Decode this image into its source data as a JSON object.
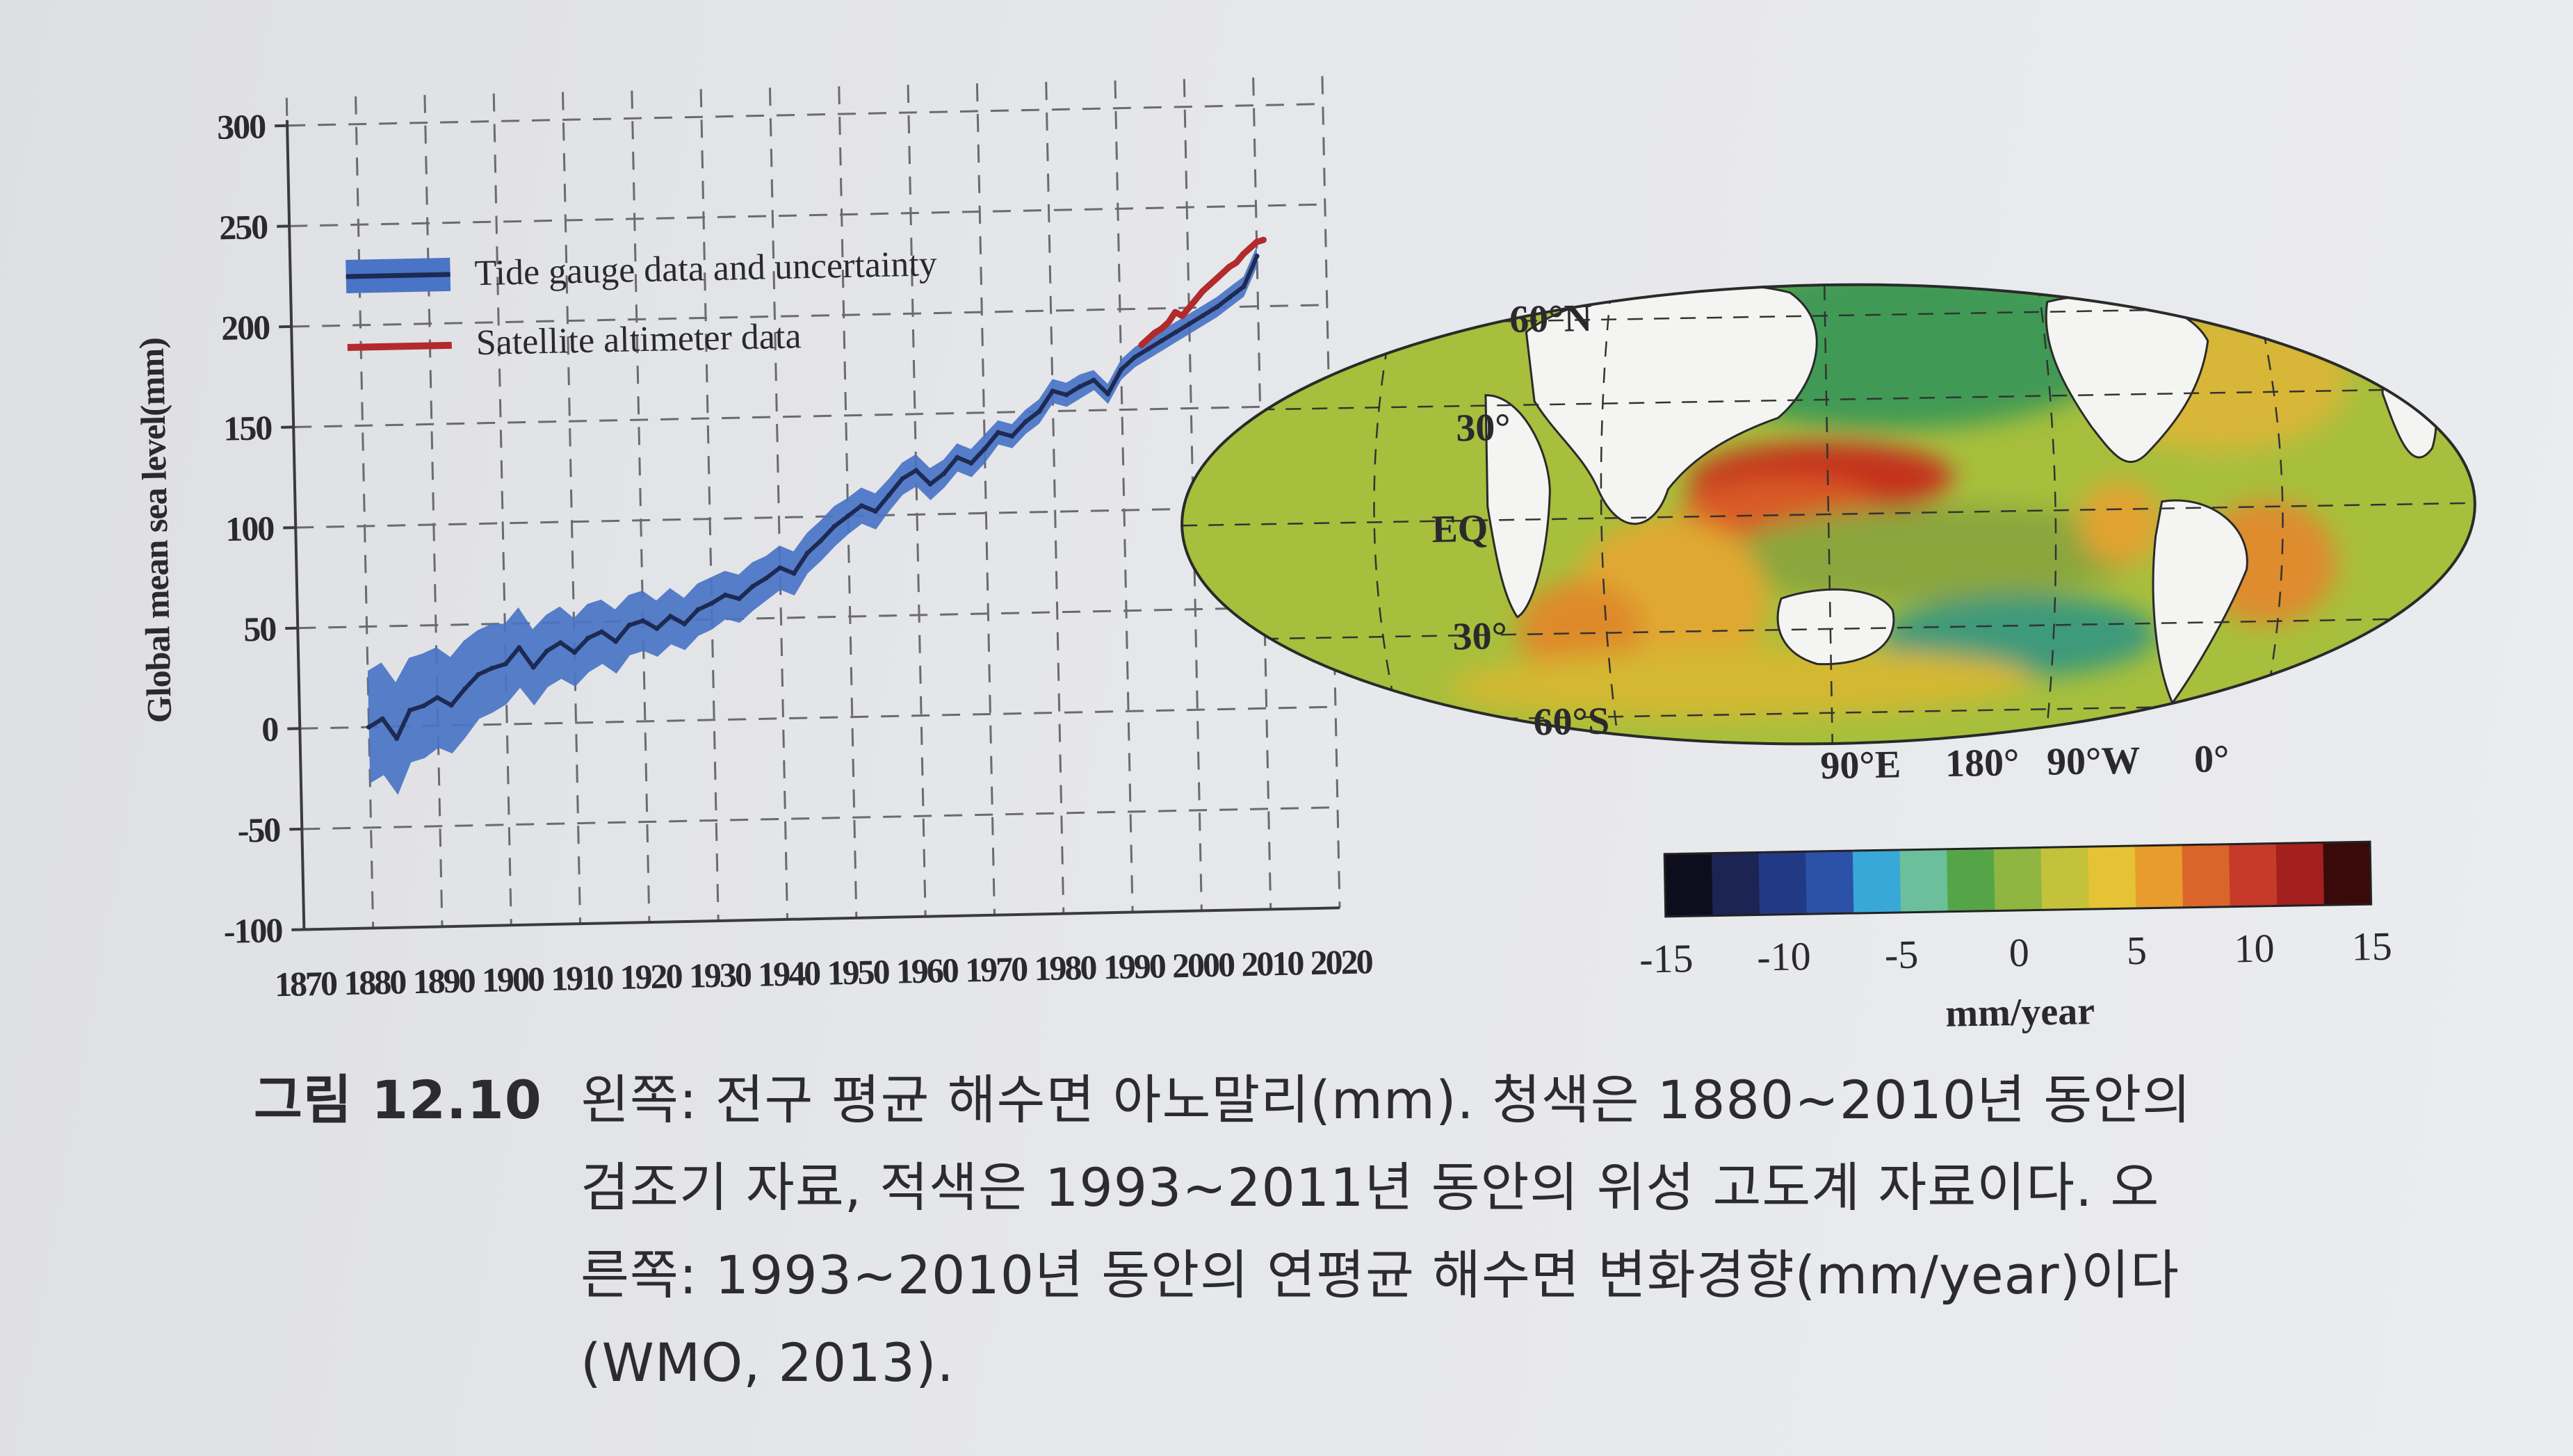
{
  "chart_data": [
    {
      "type": "line",
      "title": "",
      "xlabel": "",
      "ylabel": "Global mean sea level(mm)",
      "xlim": [
        1870,
        2020
      ],
      "ylim": [
        -100,
        300
      ],
      "xticks": [
        1870,
        1880,
        1890,
        1900,
        1910,
        1920,
        1930,
        1940,
        1950,
        1960,
        1970,
        1980,
        1990,
        2000,
        2010,
        2020
      ],
      "yticks": [
        -100,
        -50,
        0,
        50,
        100,
        150,
        200,
        250,
        300
      ],
      "grid": true,
      "legend": "top-left",
      "colors": {
        "tide": "#1d2a52",
        "band": "#4a74c6",
        "sat": "#b22a2c"
      },
      "series": [
        {
          "name": "Tide gauge data and uncertainty",
          "x": [
            1880,
            1882,
            1884,
            1886,
            1888,
            1890,
            1892,
            1894,
            1896,
            1898,
            1900,
            1902,
            1904,
            1906,
            1908,
            1910,
            1912,
            1914,
            1916,
            1918,
            1920,
            1922,
            1924,
            1926,
            1928,
            1930,
            1932,
            1934,
            1936,
            1938,
            1940,
            1942,
            1944,
            1946,
            1948,
            1950,
            1952,
            1954,
            1956,
            1958,
            1960,
            1962,
            1964,
            1966,
            1968,
            1970,
            1972,
            1974,
            1976,
            1978,
            1980,
            1982,
            1984,
            1986,
            1988,
            1990,
            1992,
            1994,
            1996,
            1998,
            2000,
            2002,
            2004,
            2006,
            2008,
            2010
          ],
          "values": [
            0,
            4,
            -6,
            8,
            10,
            14,
            10,
            18,
            25,
            28,
            30,
            38,
            28,
            36,
            40,
            35,
            42,
            45,
            40,
            48,
            50,
            46,
            52,
            48,
            55,
            58,
            62,
            60,
            66,
            70,
            75,
            72,
            82,
            88,
            95,
            100,
            105,
            102,
            110,
            118,
            122,
            115,
            120,
            128,
            125,
            132,
            140,
            138,
            145,
            150,
            160,
            158,
            162,
            165,
            158,
            170,
            176,
            180,
            184,
            188,
            192,
            196,
            200,
            205,
            210,
            225
          ],
          "uncertainty": [
            28,
            28,
            28,
            26,
            26,
            25,
            24,
            24,
            22,
            22,
            20,
            20,
            19,
            18,
            18,
            17,
            17,
            16,
            16,
            15,
            15,
            14,
            14,
            13,
            13,
            13,
            12,
            12,
            12,
            11,
            11,
            11,
            10,
            10,
            10,
            9,
            9,
            9,
            8,
            8,
            8,
            8,
            7,
            7,
            7,
            7,
            6,
            6,
            6,
            6,
            6,
            6,
            6,
            5,
            5,
            5,
            5,
            5,
            5,
            5,
            5,
            5,
            5,
            5,
            5,
            5
          ]
        },
        {
          "name": "Satellite altimeter data",
          "x": [
            1993,
            1994,
            1995,
            1996,
            1997,
            1998,
            1999,
            2000,
            2001,
            2002,
            2003,
            2004,
            2005,
            2006,
            2007,
            2008,
            2009,
            2010,
            2011
          ],
          "values": [
            182,
            185,
            188,
            190,
            193,
            198,
            196,
            200,
            204,
            208,
            211,
            214,
            217,
            220,
            222,
            226,
            229,
            232,
            233
          ]
        }
      ]
    },
    {
      "type": "heatmap",
      "title": "",
      "lat_labels": [
        "60°N",
        "30°",
        "EQ",
        "30°",
        "60°S"
      ],
      "lon_labels": [
        "90°E",
        "180°",
        "90°W",
        "0°"
      ],
      "colorbar": {
        "label": "mm/year",
        "range": [
          -15,
          15
        ],
        "ticks": [
          -15,
          -10,
          -5,
          0,
          5,
          10,
          15
        ],
        "colors": [
          "#0d0d1e",
          "#1b2452",
          "#223a86",
          "#2c52a8",
          "#38a8d8",
          "#6bbf9a",
          "#55a548",
          "#8eb640",
          "#c4c13a",
          "#e6c235",
          "#e79c2b",
          "#d9652a",
          "#c63a2a",
          "#a3201f",
          "#3a0a0a"
        ]
      }
    }
  ],
  "caption": {
    "label": "그림 12.10",
    "lines": [
      "왼쪽: 전구 평균 해수면 아노말리(mm). 청색은 1880~2010년 동안의",
      "검조기 자료, 적색은 1993~2011년 동안의 위성 고도계 자료이다. 오",
      "른쪽: 1993~2010년 동안의 연평균 해수면 변화경향(mm/year)이다",
      "(WMO, 2013)."
    ]
  }
}
